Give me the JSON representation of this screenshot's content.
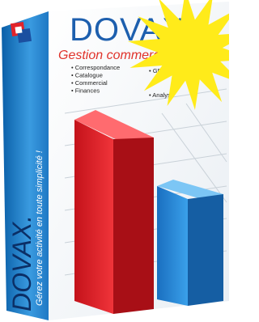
{
  "box": {
    "front": {
      "brand": "DOVAX",
      "product": "Gestion commerciale",
      "features_left": [
        "Correspondance",
        "Catalogue",
        "Commercial",
        "Finances"
      ],
      "features_right": [
        "GRH",
        "Analyse"
      ]
    },
    "spine": {
      "brand": "DOVAX.",
      "tagline": "Gérez votre activité en toute simplicité !"
    }
  }
}
